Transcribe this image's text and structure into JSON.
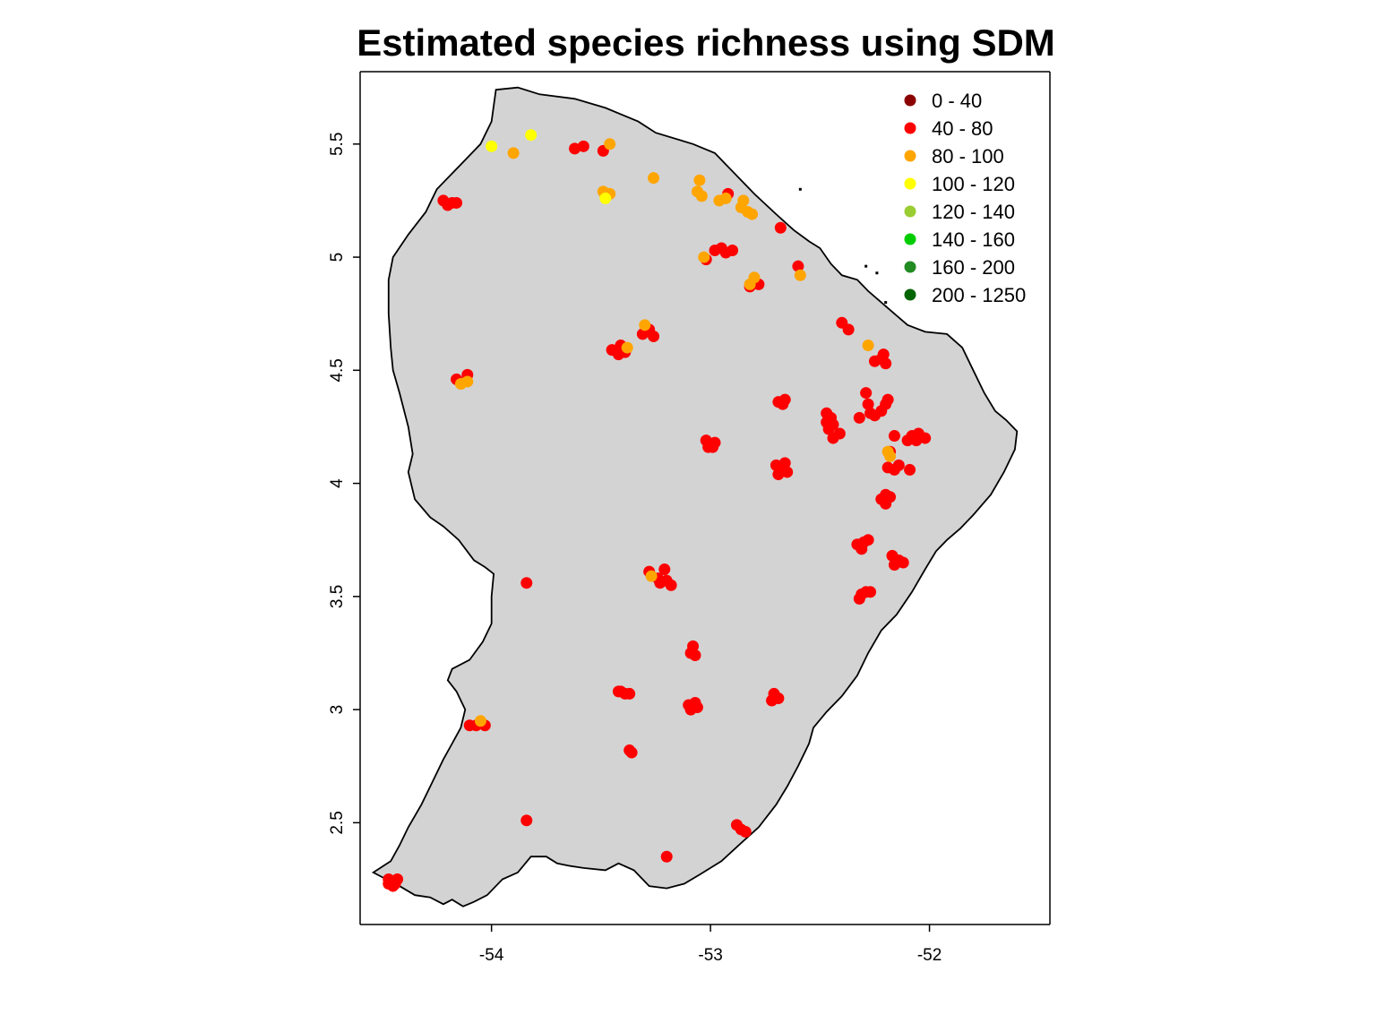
{
  "chart_data": {
    "type": "scatter",
    "title": "Estimated species richness using SDM",
    "xlabel": "",
    "ylabel": "",
    "xlim": [
      -54.6,
      -51.45
    ],
    "ylim": [
      2.05,
      5.82
    ],
    "xticks": [
      -54,
      -53,
      -52
    ],
    "xtick_labels": [
      "-54",
      "-53",
      "-52"
    ],
    "yticks": [
      2.5,
      3,
      3.5,
      4,
      4.5,
      5,
      5.5
    ],
    "ytick_labels": [
      "2.5",
      "3",
      "3.5",
      "4",
      "4.5",
      "5",
      "5.5"
    ],
    "grid": false,
    "legend_position": "top-right",
    "land_color": "#d3d3d3",
    "legend": [
      {
        "label": "0 - 40",
        "color": "#8b0000"
      },
      {
        "label": "40 - 80",
        "color": "#ff0000"
      },
      {
        "label": "80 - 100",
        "color": "#ffa500"
      },
      {
        "label": "100 - 120",
        "color": "#ffff00"
      },
      {
        "label": "120 - 140",
        "color": "#9acd32"
      },
      {
        "label": "140 - 160",
        "color": "#00cd00"
      },
      {
        "label": "160 - 200",
        "color": "#228b22"
      },
      {
        "label": "200 - 1250",
        "color": "#006400"
      }
    ],
    "outline": [
      [
        -53.98,
        5.74
      ],
      [
        -53.88,
        5.75
      ],
      [
        -53.78,
        5.72
      ],
      [
        -53.62,
        5.7
      ],
      [
        -53.48,
        5.66
      ],
      [
        -53.33,
        5.6
      ],
      [
        -53.25,
        5.55
      ],
      [
        -53.08,
        5.5
      ],
      [
        -52.98,
        5.46
      ],
      [
        -52.92,
        5.4
      ],
      [
        -52.85,
        5.33
      ],
      [
        -52.8,
        5.28
      ],
      [
        -52.7,
        5.19
      ],
      [
        -52.62,
        5.12
      ],
      [
        -52.55,
        5.07
      ],
      [
        -52.5,
        5.04
      ],
      [
        -52.45,
        4.97
      ],
      [
        -52.4,
        4.92
      ],
      [
        -52.33,
        4.9
      ],
      [
        -52.28,
        4.85
      ],
      [
        -52.22,
        4.8
      ],
      [
        -52.16,
        4.75
      ],
      [
        -52.1,
        4.7
      ],
      [
        -52.02,
        4.67
      ],
      [
        -51.92,
        4.66
      ],
      [
        -51.85,
        4.6
      ],
      [
        -51.8,
        4.5
      ],
      [
        -51.75,
        4.4
      ],
      [
        -51.7,
        4.32
      ],
      [
        -51.65,
        4.28
      ],
      [
        -51.6,
        4.23
      ],
      [
        -51.61,
        4.15
      ],
      [
        -51.66,
        4.05
      ],
      [
        -51.72,
        3.95
      ],
      [
        -51.8,
        3.86
      ],
      [
        -51.86,
        3.8
      ],
      [
        -51.92,
        3.75
      ],
      [
        -51.97,
        3.7
      ],
      [
        -52.02,
        3.62
      ],
      [
        -52.08,
        3.52
      ],
      [
        -52.15,
        3.42
      ],
      [
        -52.22,
        3.35
      ],
      [
        -52.28,
        3.25
      ],
      [
        -52.33,
        3.15
      ],
      [
        -52.4,
        3.06
      ],
      [
        -52.47,
        2.99
      ],
      [
        -52.53,
        2.92
      ],
      [
        -52.55,
        2.85
      ],
      [
        -52.6,
        2.75
      ],
      [
        -52.65,
        2.66
      ],
      [
        -52.7,
        2.58
      ],
      [
        -52.78,
        2.48
      ],
      [
        -52.86,
        2.41
      ],
      [
        -52.95,
        2.33
      ],
      [
        -53.05,
        2.27
      ],
      [
        -53.12,
        2.23
      ],
      [
        -53.2,
        2.21
      ],
      [
        -53.28,
        2.22
      ],
      [
        -53.35,
        2.29
      ],
      [
        -53.42,
        2.32
      ],
      [
        -53.48,
        2.29
      ],
      [
        -53.58,
        2.3
      ],
      [
        -53.65,
        2.31
      ],
      [
        -53.7,
        2.32
      ],
      [
        -53.75,
        2.35
      ],
      [
        -53.82,
        2.35
      ],
      [
        -53.88,
        2.28
      ],
      [
        -53.95,
        2.25
      ],
      [
        -54.02,
        2.18
      ],
      [
        -54.08,
        2.15
      ],
      [
        -54.13,
        2.13
      ],
      [
        -54.18,
        2.16
      ],
      [
        -54.22,
        2.14
      ],
      [
        -54.28,
        2.17
      ],
      [
        -54.35,
        2.18
      ],
      [
        -54.42,
        2.22
      ],
      [
        -54.5,
        2.26
      ],
      [
        -54.54,
        2.28
      ],
      [
        -54.46,
        2.33
      ],
      [
        -54.42,
        2.4
      ],
      [
        -54.38,
        2.48
      ],
      [
        -54.32,
        2.58
      ],
      [
        -54.27,
        2.68
      ],
      [
        -54.22,
        2.78
      ],
      [
        -54.18,
        2.85
      ],
      [
        -54.14,
        2.92
      ],
      [
        -54.12,
        3.0
      ],
      [
        -54.16,
        3.08
      ],
      [
        -54.2,
        3.13
      ],
      [
        -54.18,
        3.18
      ],
      [
        -54.1,
        3.22
      ],
      [
        -54.04,
        3.3
      ],
      [
        -54.0,
        3.38
      ],
      [
        -54.0,
        3.5
      ],
      [
        -53.99,
        3.6
      ],
      [
        -54.03,
        3.63
      ],
      [
        -54.08,
        3.66
      ],
      [
        -54.15,
        3.75
      ],
      [
        -54.22,
        3.81
      ],
      [
        -54.28,
        3.85
      ],
      [
        -54.35,
        3.93
      ],
      [
        -54.38,
        4.05
      ],
      [
        -54.36,
        4.13
      ],
      [
        -54.38,
        4.25
      ],
      [
        -54.42,
        4.4
      ],
      [
        -54.45,
        4.5
      ],
      [
        -54.46,
        4.6
      ],
      [
        -54.47,
        4.75
      ],
      [
        -54.47,
        4.9
      ],
      [
        -54.45,
        5.0
      ],
      [
        -54.38,
        5.1
      ],
      [
        -54.3,
        5.2
      ],
      [
        -54.25,
        5.3
      ],
      [
        -54.15,
        5.4
      ],
      [
        -54.05,
        5.5
      ],
      [
        -54.0,
        5.6
      ],
      [
        -53.98,
        5.74
      ]
    ],
    "points_red": [
      [
        -54.22,
        5.25
      ],
      [
        -54.18,
        5.24
      ],
      [
        -54.2,
        5.23
      ],
      [
        -54.16,
        5.24
      ],
      [
        -53.62,
        5.48
      ],
      [
        -53.58,
        5.49
      ],
      [
        -53.49,
        5.47
      ],
      [
        -52.92,
        5.28
      ],
      [
        -52.68,
        5.13
      ],
      [
        -52.95,
        5.04
      ],
      [
        -52.9,
        5.03
      ],
      [
        -52.93,
        5.02
      ],
      [
        -52.98,
        5.03
      ],
      [
        -53.02,
        4.99
      ],
      [
        -52.78,
        4.88
      ],
      [
        -52.82,
        4.87
      ],
      [
        -52.6,
        4.96
      ],
      [
        -52.4,
        4.71
      ],
      [
        -52.37,
        4.68
      ],
      [
        -53.28,
        4.68
      ],
      [
        -53.31,
        4.66
      ],
      [
        -53.26,
        4.65
      ],
      [
        -53.45,
        4.59
      ],
      [
        -53.41,
        4.61
      ],
      [
        -53.42,
        4.57
      ],
      [
        -53.39,
        4.58
      ],
      [
        -54.16,
        4.46
      ],
      [
        -54.11,
        4.48
      ],
      [
        -52.25,
        4.54
      ],
      [
        -52.21,
        4.57
      ],
      [
        -52.22,
        4.55
      ],
      [
        -52.2,
        4.53
      ],
      [
        -52.69,
        4.36
      ],
      [
        -52.66,
        4.37
      ],
      [
        -52.67,
        4.35
      ],
      [
        -52.47,
        4.31
      ],
      [
        -52.45,
        4.29
      ],
      [
        -52.47,
        4.27
      ],
      [
        -52.32,
        4.29
      ],
      [
        -52.28,
        4.35
      ],
      [
        -52.25,
        4.3
      ],
      [
        -52.27,
        4.31
      ],
      [
        -52.22,
        4.32
      ],
      [
        -52.19,
        4.37
      ],
      [
        -52.2,
        4.35
      ],
      [
        -52.29,
        4.4
      ],
      [
        -52.44,
        4.26
      ],
      [
        -52.46,
        4.24
      ],
      [
        -52.44,
        4.2
      ],
      [
        -52.41,
        4.22
      ],
      [
        -52.16,
        4.21
      ],
      [
        -52.08,
        4.21
      ],
      [
        -52.06,
        4.19
      ],
      [
        -52.1,
        4.19
      ],
      [
        -52.05,
        4.22
      ],
      [
        -52.02,
        4.2
      ],
      [
        -53.02,
        4.19
      ],
      [
        -52.98,
        4.18
      ],
      [
        -53.01,
        4.16
      ],
      [
        -52.99,
        4.16
      ],
      [
        -52.7,
        4.08
      ],
      [
        -52.66,
        4.09
      ],
      [
        -52.68,
        4.06
      ],
      [
        -52.69,
        4.04
      ],
      [
        -52.65,
        4.05
      ],
      [
        -52.18,
        4.14
      ],
      [
        -52.19,
        4.07
      ],
      [
        -52.16,
        4.06
      ],
      [
        -52.14,
        4.08
      ],
      [
        -52.09,
        4.06
      ],
      [
        -52.2,
        3.95
      ],
      [
        -52.22,
        3.93
      ],
      [
        -52.18,
        3.94
      ],
      [
        -52.2,
        3.91
      ],
      [
        -52.33,
        3.73
      ],
      [
        -52.3,
        3.74
      ],
      [
        -52.28,
        3.75
      ],
      [
        -52.31,
        3.71
      ],
      [
        -52.17,
        3.68
      ],
      [
        -52.14,
        3.66
      ],
      [
        -52.16,
        3.64
      ],
      [
        -52.12,
        3.65
      ],
      [
        -52.31,
        3.51
      ],
      [
        -52.29,
        3.52
      ],
      [
        -52.27,
        3.52
      ],
      [
        -52.32,
        3.49
      ],
      [
        -53.28,
        3.61
      ],
      [
        -53.24,
        3.58
      ],
      [
        -53.2,
        3.57
      ],
      [
        -53.18,
        3.55
      ],
      [
        -53.21,
        3.62
      ],
      [
        -53.23,
        3.56
      ],
      [
        -53.84,
        3.56
      ],
      [
        -53.08,
        3.28
      ],
      [
        -53.09,
        3.25
      ],
      [
        -53.07,
        3.24
      ],
      [
        -53.42,
        3.08
      ],
      [
        -53.39,
        3.07
      ],
      [
        -53.37,
        3.07
      ],
      [
        -53.41,
        3.08
      ],
      [
        -53.1,
        3.02
      ],
      [
        -53.07,
        3.03
      ],
      [
        -53.09,
        3.0
      ],
      [
        -53.06,
        3.01
      ],
      [
        -52.71,
        3.07
      ],
      [
        -52.72,
        3.04
      ],
      [
        -52.69,
        3.05
      ],
      [
        -54.1,
        2.93
      ],
      [
        -54.07,
        2.93
      ],
      [
        -54.05,
        2.94
      ],
      [
        -54.03,
        2.93
      ],
      [
        -53.37,
        2.82
      ],
      [
        -53.36,
        2.81
      ],
      [
        -53.84,
        2.51
      ],
      [
        -52.88,
        2.49
      ],
      [
        -52.86,
        2.47
      ],
      [
        -52.84,
        2.46
      ],
      [
        -53.2,
        2.35
      ],
      [
        -54.47,
        2.25
      ],
      [
        -54.44,
        2.23
      ],
      [
        -54.45,
        2.22
      ],
      [
        -54.43,
        2.25
      ],
      [
        -54.47,
        2.23
      ]
    ],
    "points_orange": [
      [
        -53.9,
        5.46
      ],
      [
        -53.46,
        5.5
      ],
      [
        -53.48,
        5.27
      ],
      [
        -53.46,
        5.28
      ],
      [
        -53.49,
        5.29
      ],
      [
        -53.26,
        5.35
      ],
      [
        -53.05,
        5.34
      ],
      [
        -53.06,
        5.29
      ],
      [
        -53.04,
        5.27
      ],
      [
        -52.93,
        5.26
      ],
      [
        -52.96,
        5.25
      ],
      [
        -52.86,
        5.22
      ],
      [
        -52.83,
        5.2
      ],
      [
        -52.85,
        5.25
      ],
      [
        -52.81,
        5.19
      ],
      [
        -53.03,
        5.0
      ],
      [
        -52.8,
        4.91
      ],
      [
        -52.82,
        4.88
      ],
      [
        -52.59,
        4.92
      ],
      [
        -53.3,
        4.7
      ],
      [
        -53.38,
        4.6
      ],
      [
        -54.14,
        4.44
      ],
      [
        -54.11,
        4.45
      ],
      [
        -52.28,
        4.61
      ],
      [
        -52.19,
        4.14
      ],
      [
        -52.18,
        4.12
      ],
      [
        -54.05,
        2.95
      ],
      [
        -53.27,
        3.59
      ]
    ],
    "points_yellow": [
      [
        -54.0,
        5.49
      ],
      [
        -53.82,
        5.54
      ],
      [
        -53.48,
        5.26
      ]
    ]
  }
}
